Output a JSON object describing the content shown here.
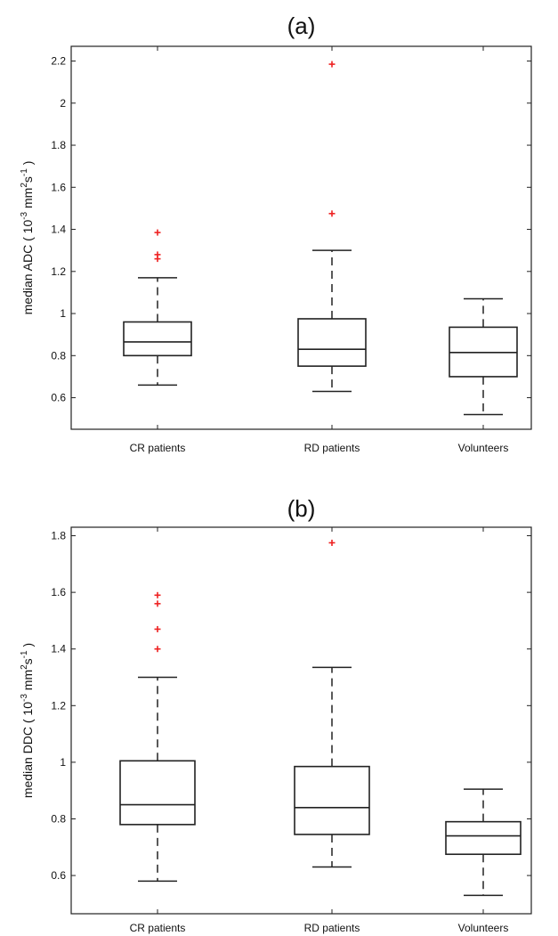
{
  "chart_data": [
    {
      "type": "box",
      "title": "(a)",
      "ylabel_prefix": "median ADC ( 10",
      "ylabel_exp1": "-3",
      "ylabel_mid": " mm",
      "ylabel_exp2": "2",
      "ylabel_mid2": "s",
      "ylabel_exp3": "-1",
      "ylabel_suffix": " )",
      "ylim": [
        0.45,
        2.27
      ],
      "yticks": [
        0.6,
        0.8,
        1,
        1.2,
        1.4,
        1.6,
        1.8,
        2,
        2.2
      ],
      "ytick_labels": [
        "0.6",
        "0.8",
        "1",
        "1.2",
        "1.4",
        "1.6",
        "1.8",
        "2",
        "2.2"
      ],
      "categories": [
        "CR patients",
        "RD patients",
        "Volunteers"
      ],
      "boxes": [
        {
          "whisker_low": 0.66,
          "q1": 0.8,
          "median": 0.865,
          "q3": 0.96,
          "whisker_high": 1.17,
          "outliers": [
            1.26,
            1.28,
            1.385
          ]
        },
        {
          "whisker_low": 0.63,
          "q1": 0.75,
          "median": 0.83,
          "q3": 0.975,
          "whisker_high": 1.3,
          "outliers": [
            1.475,
            2.185
          ]
        },
        {
          "whisker_low": 0.52,
          "q1": 0.7,
          "median": 0.815,
          "q3": 0.935,
          "whisker_high": 1.07,
          "outliers": []
        }
      ],
      "outlier_color": "#ee2222"
    },
    {
      "type": "box",
      "title": "(b)",
      "ylabel_prefix": "median DDC ( 10",
      "ylabel_exp1": "-3",
      "ylabel_mid": " mm",
      "ylabel_exp2": "2",
      "ylabel_mid2": "s",
      "ylabel_exp3": "-1",
      "ylabel_suffix": " )",
      "ylim": [
        0.465,
        1.83
      ],
      "yticks": [
        0.6,
        0.8,
        1,
        1.2,
        1.4,
        1.6,
        1.8
      ],
      "ytick_labels": [
        "0.6",
        "0.8",
        "1",
        "1.2",
        "1.4",
        "1.6",
        "1.8"
      ],
      "categories": [
        "CR patients",
        "RD patients",
        "Volunteers"
      ],
      "boxes": [
        {
          "whisker_low": 0.58,
          "q1": 0.78,
          "median": 0.85,
          "q3": 1.005,
          "whisker_high": 1.3,
          "outliers": [
            1.4,
            1.47,
            1.56,
            1.59
          ]
        },
        {
          "whisker_low": 0.63,
          "q1": 0.745,
          "median": 0.84,
          "q3": 0.985,
          "whisker_high": 1.335,
          "outliers": [
            1.775
          ]
        },
        {
          "whisker_low": 0.53,
          "q1": 0.675,
          "median": 0.74,
          "q3": 0.79,
          "whisker_high": 0.905,
          "outliers": []
        }
      ],
      "outlier_color": "#ee2222"
    }
  ]
}
